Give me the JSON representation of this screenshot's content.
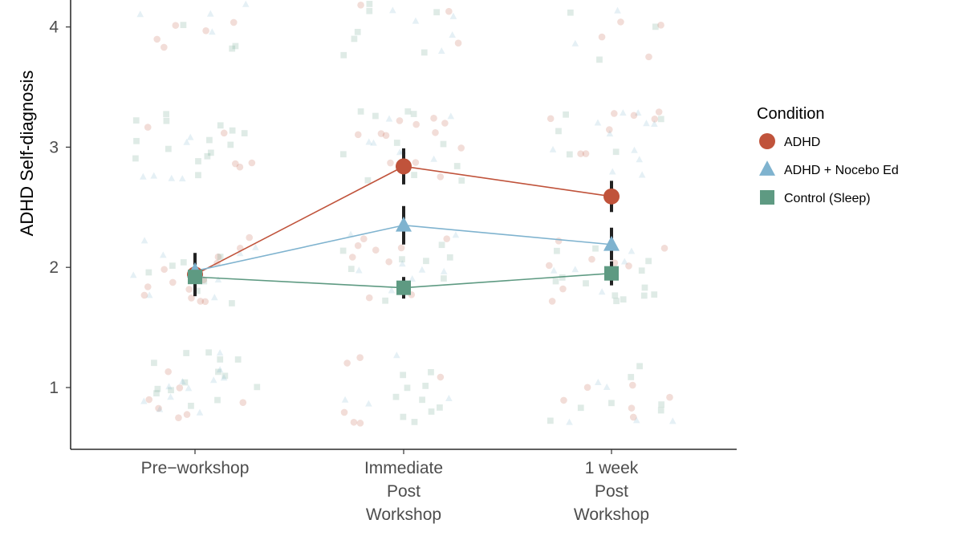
{
  "chart_data": {
    "type": "line",
    "title": "",
    "xlabel": "",
    "ylabel": "ADHD Self-diagnosis",
    "categories": [
      [
        "Pre−workshop"
      ],
      [
        "Immediate",
        "Post",
        "Workshop"
      ],
      [
        "1 week",
        "Post",
        "Workshop"
      ]
    ],
    "y_ticks": [
      1,
      2,
      3,
      4
    ],
    "ylim": [
      0.5,
      4.2
    ],
    "grid": false,
    "legend": {
      "title": "Condition",
      "placement": "right"
    },
    "series": [
      {
        "name": "ADHD",
        "marker": "circle",
        "color": "#c0533b",
        "values": [
          1.94,
          2.84,
          2.59
        ],
        "ci": [
          [
            1.77,
            2.11
          ],
          [
            2.69,
            2.99
          ],
          [
            2.46,
            2.72
          ]
        ]
      },
      {
        "name": "ADHD + Nocebo Ed",
        "marker": "triangle",
        "color": "#7fb3cf",
        "values": [
          1.97,
          2.35,
          2.19
        ],
        "ci": [
          [
            1.84,
            2.12
          ],
          [
            2.19,
            2.51
          ],
          [
            2.06,
            2.33
          ]
        ]
      },
      {
        "name": "Control (Sleep)",
        "marker": "square",
        "color": "#5e9a82",
        "values": [
          1.92,
          1.83,
          1.95
        ],
        "ci": [
          [
            1.76,
            2.08
          ],
          [
            1.74,
            1.92
          ],
          [
            1.85,
            2.05
          ]
        ]
      }
    ],
    "raw_points_note": "jittered individual responses at levels 1-4 per group"
  }
}
